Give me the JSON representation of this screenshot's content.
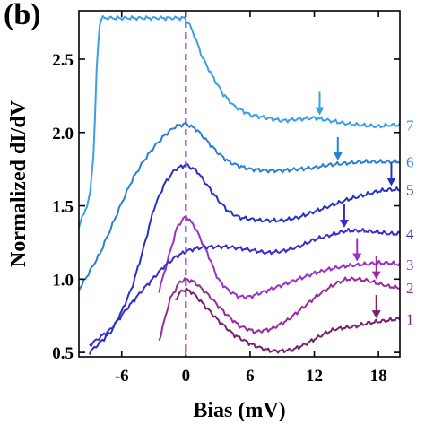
{
  "panel_label": "(b)",
  "chart_data": {
    "type": "line",
    "xlabel": "Bias (mV)",
    "ylabel": "Normalized dI/dV",
    "xlim": [
      -10,
      20
    ],
    "ylim": [
      0.47,
      2.83
    ],
    "xticks": [
      -6,
      0,
      6,
      12,
      18
    ],
    "xtick_labels": [
      "-6",
      "0",
      "6",
      "12",
      "18"
    ],
    "yticks": [
      0.5,
      1.0,
      1.5,
      2.0,
      2.5
    ],
    "ytick_labels": [
      "0.5",
      "1.0",
      "1.5",
      "2.0",
      "2.5"
    ],
    "zero_bias_marker": {
      "x": 0,
      "style": "dashed",
      "color": "#a035e0"
    },
    "series": [
      {
        "name": "1",
        "color": "#7a1e6e",
        "x": [
          -1,
          -0.4,
          0,
          0.6,
          1.5,
          3,
          4.5,
          6,
          7,
          8,
          9,
          10,
          11,
          12,
          13,
          14,
          15,
          16,
          17,
          18,
          19,
          20
        ],
        "y": [
          0.86,
          0.92,
          0.93,
          0.91,
          0.84,
          0.72,
          0.62,
          0.56,
          0.53,
          0.51,
          0.51,
          0.52,
          0.55,
          0.59,
          0.63,
          0.66,
          0.67,
          0.68,
          0.7,
          0.71,
          0.72,
          0.73
        ],
        "arrow_x": 17.8
      },
      {
        "name": "2",
        "color": "#992a9e",
        "x": [
          -2.5,
          -1.5,
          -0.6,
          0,
          0.8,
          2,
          3.5,
          5,
          6.5,
          8,
          9.5,
          11,
          12.5,
          14,
          15,
          16,
          17,
          18,
          19,
          20
        ],
        "y": [
          0.58,
          0.86,
          0.98,
          1.0,
          0.98,
          0.9,
          0.78,
          0.68,
          0.64,
          0.66,
          0.72,
          0.81,
          0.9,
          0.97,
          1.0,
          1.0,
          0.99,
          0.97,
          0.95,
          0.94
        ],
        "arrow_x": 17.8
      },
      {
        "name": "3",
        "color": "#9a30c8",
        "x": [
          -2.5,
          -1.5,
          -0.8,
          0,
          0.8,
          2,
          3,
          4,
          5,
          6,
          7.5,
          9,
          10.5,
          12,
          13.5,
          15,
          16.5,
          18,
          19,
          20
        ],
        "y": [
          0.92,
          1.18,
          1.36,
          1.43,
          1.36,
          1.18,
          1.0,
          0.92,
          0.88,
          0.88,
          0.92,
          0.96,
          1.0,
          1.04,
          1.07,
          1.09,
          1.1,
          1.11,
          1.11,
          1.1
        ],
        "arrow_x": 16.0
      },
      {
        "name": "4",
        "color": "#3a2bd0",
        "x": [
          -9,
          -7,
          -5.5,
          -4,
          -3,
          -2,
          -1,
          0,
          1,
          2,
          3,
          4,
          5,
          6,
          7.5,
          9,
          10.5,
          12,
          13.5,
          15,
          16.5,
          18,
          19,
          20
        ],
        "y": [
          0.55,
          0.66,
          0.8,
          0.93,
          1.01,
          1.09,
          1.15,
          1.19,
          1.21,
          1.22,
          1.22,
          1.22,
          1.21,
          1.2,
          1.18,
          1.19,
          1.22,
          1.27,
          1.3,
          1.33,
          1.33,
          1.32,
          1.31,
          1.31
        ],
        "arrow_x": 14.8
      },
      {
        "name": "5",
        "color": "#2432c4",
        "x": [
          -9,
          -7,
          -6,
          -5,
          -4,
          -3,
          -2,
          -1,
          0,
          1,
          2,
          3,
          4,
          5,
          6,
          7,
          8,
          9,
          10.5,
          12,
          13.5,
          15,
          16.5,
          18,
          19,
          20
        ],
        "y": [
          0.5,
          0.64,
          0.78,
          0.95,
          1.2,
          1.48,
          1.65,
          1.75,
          1.78,
          1.74,
          1.64,
          1.54,
          1.46,
          1.42,
          1.41,
          1.4,
          1.4,
          1.4,
          1.42,
          1.46,
          1.5,
          1.54,
          1.57,
          1.6,
          1.61,
          1.61
        ],
        "arrow_x": 19.2
      },
      {
        "name": "6",
        "color": "#2a7fd6",
        "x": [
          -10,
          -9,
          -8,
          -7,
          -6,
          -5,
          -4,
          -3,
          -2,
          -1,
          0,
          1,
          2,
          3,
          4,
          5,
          6,
          7.5,
          9,
          10.5,
          12,
          13.5,
          15,
          16.5,
          18,
          19,
          20
        ],
        "y": [
          0.93,
          1.05,
          1.18,
          1.35,
          1.52,
          1.68,
          1.8,
          1.9,
          1.98,
          2.04,
          2.06,
          2.02,
          1.94,
          1.86,
          1.8,
          1.77,
          1.75,
          1.74,
          1.74,
          1.75,
          1.76,
          1.78,
          1.79,
          1.8,
          1.8,
          1.8,
          1.8
        ],
        "arrow_x": 14.2
      },
      {
        "name": "7",
        "color": "#3aa0e6",
        "x": [
          -10,
          -9,
          -8.6,
          -8.3,
          -8,
          -6,
          -4,
          -2,
          -0.8,
          -0.1,
          0.3,
          0.8,
          1.5,
          2.5,
          3.5,
          4.5,
          6,
          7.5,
          9,
          10.5,
          12,
          13.5,
          15,
          16.5,
          18,
          19,
          20
        ],
        "y": [
          1.36,
          1.55,
          1.88,
          2.52,
          2.78,
          2.78,
          2.78,
          2.78,
          2.78,
          2.78,
          2.74,
          2.66,
          2.52,
          2.38,
          2.26,
          2.18,
          2.12,
          2.1,
          2.08,
          2.09,
          2.1,
          2.08,
          2.06,
          2.05,
          2.04,
          2.05,
          2.05
        ],
        "arrow_x": 12.5
      }
    ]
  }
}
